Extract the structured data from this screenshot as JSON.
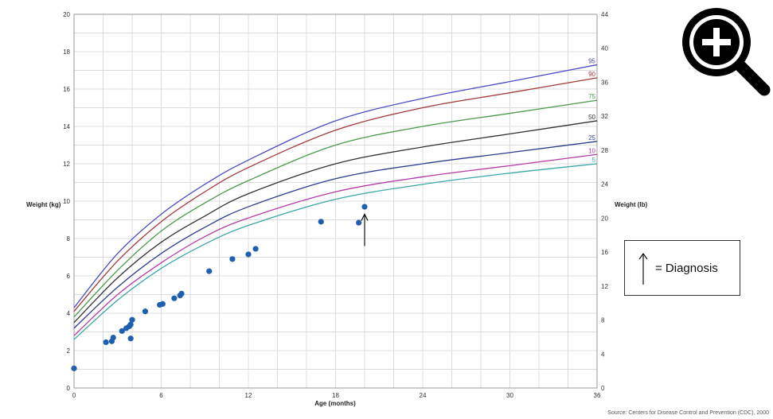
{
  "chart_data": {
    "type": "scatter",
    "xlabel": "Age (months)",
    "ylabel": "Weight (kg)",
    "y2label": "Weight (lb)",
    "xlim": [
      0,
      36
    ],
    "ylim": [
      0,
      20
    ],
    "y2lim": [
      0,
      44
    ],
    "x_ticks": [
      0,
      6,
      12,
      18,
      24,
      30,
      36
    ],
    "y_ticks": [
      0,
      2,
      4,
      6,
      8,
      10,
      12,
      14,
      16,
      18,
      20
    ],
    "y2_ticks": [
      0,
      4,
      8,
      12,
      16,
      20,
      24,
      28,
      32,
      36,
      40,
      44
    ],
    "grid": true,
    "percentile_curves": [
      {
        "name": "95",
        "color": "#4b4bc4",
        "x": [
          0,
          3,
          6,
          9,
          12,
          18,
          24,
          30,
          36
        ],
        "y": [
          4.3,
          7.2,
          9.3,
          10.9,
          12.2,
          14.3,
          15.5,
          16.4,
          17.3
        ]
      },
      {
        "name": "90",
        "color": "#a13a3a",
        "x": [
          0,
          3,
          6,
          9,
          12,
          18,
          24,
          30,
          36
        ],
        "y": [
          4.1,
          6.8,
          8.9,
          10.5,
          11.8,
          13.8,
          15.0,
          15.8,
          16.6
        ]
      },
      {
        "name": "75",
        "color": "#4a9a4a",
        "x": [
          0,
          3,
          6,
          9,
          12,
          18,
          24,
          30,
          36
        ],
        "y": [
          3.8,
          6.3,
          8.4,
          9.9,
          11.1,
          13.0,
          14.0,
          14.7,
          15.4
        ]
      },
      {
        "name": "50",
        "color": "#333333",
        "x": [
          0,
          3,
          6,
          9,
          12,
          18,
          24,
          30,
          36
        ],
        "y": [
          3.5,
          5.9,
          7.8,
          9.2,
          10.4,
          12.0,
          12.9,
          13.6,
          14.3
        ]
      },
      {
        "name": "25",
        "color": "#2e3e8c",
        "x": [
          0,
          3,
          6,
          9,
          12,
          18,
          24,
          30,
          36
        ],
        "y": [
          3.2,
          5.4,
          7.2,
          8.6,
          9.7,
          11.2,
          12.0,
          12.6,
          13.2
        ]
      },
      {
        "name": "10",
        "color": "#b33aa8",
        "x": [
          0,
          3,
          6,
          9,
          12,
          18,
          24,
          30,
          36
        ],
        "y": [
          2.8,
          5.0,
          6.7,
          8.1,
          9.1,
          10.5,
          11.3,
          11.9,
          12.5
        ]
      },
      {
        "name": "5",
        "color": "#3aa6a6",
        "x": [
          0,
          3,
          6,
          9,
          12,
          18,
          24,
          30,
          36
        ],
        "y": [
          2.6,
          4.7,
          6.4,
          7.7,
          8.7,
          10.1,
          10.9,
          11.5,
          12.0
        ]
      }
    ],
    "points": {
      "color": "#1f5fb0",
      "x": [
        0.0,
        2.2,
        2.6,
        2.7,
        3.3,
        3.6,
        3.8,
        3.9,
        3.9,
        4.0,
        4.9,
        5.9,
        6.1,
        6.9,
        7.3,
        7.4,
        9.3,
        10.9,
        12.0,
        12.5,
        17.0,
        19.6,
        20.0
      ],
      "y": [
        1.05,
        2.45,
        2.5,
        2.7,
        3.05,
        3.2,
        3.3,
        2.65,
        3.4,
        3.65,
        4.1,
        4.45,
        4.5,
        4.8,
        4.95,
        5.05,
        6.25,
        6.9,
        7.15,
        7.45,
        8.9,
        8.85,
        9.7
      ]
    },
    "arrow": {
      "x": 20.0,
      "y_from": 7.6,
      "y_to": 9.3
    },
    "source": "Source: Centers for Disease Control and Prevention (CDC), 2000"
  },
  "legend": {
    "text": "= Diagnosis"
  },
  "zoom": {
    "icon": "zoom-in-icon"
  }
}
